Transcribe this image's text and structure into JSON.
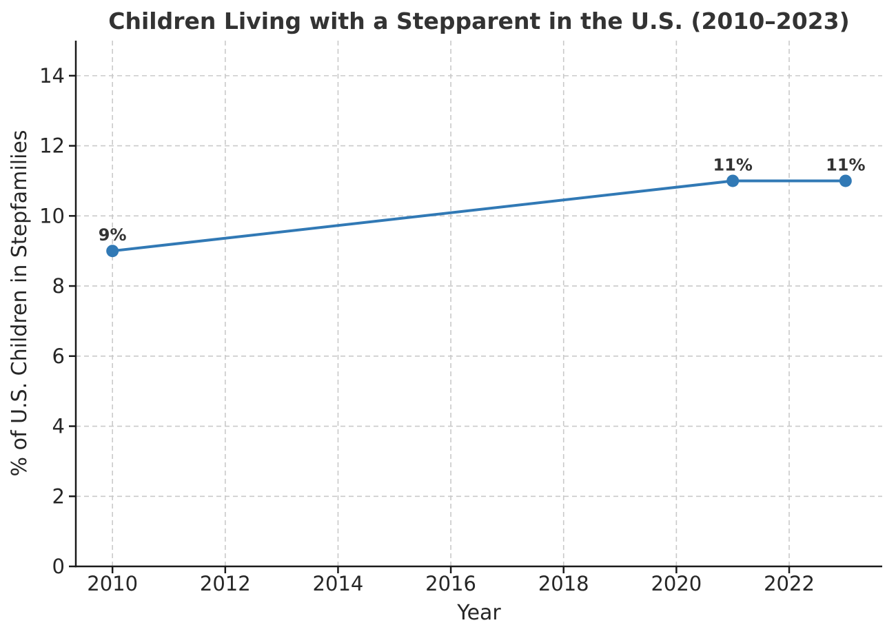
{
  "chart_data": {
    "type": "line",
    "title": "Children Living with a Stepparent in the U.S. (2010–2023)",
    "xlabel": "Year",
    "ylabel": "% of U.S. Children in Stepfamilies",
    "series": [
      {
        "name": "Children in stepfamilies",
        "x": [
          2010,
          2021,
          2023
        ],
        "values": [
          9,
          11,
          11
        ],
        "point_labels": [
          "9%",
          "11%",
          "11%"
        ]
      }
    ],
    "xticks": [
      2010,
      2012,
      2014,
      2016,
      2018,
      2020,
      2022
    ],
    "yticks": [
      0,
      2,
      4,
      6,
      8,
      10,
      12,
      14
    ],
    "xlim": [
      2009.35,
      2023.65
    ],
    "ylim": [
      0,
      15
    ],
    "grid": "dashed both",
    "legend": "none",
    "marker": "circle",
    "colors": {
      "line": "#3179b5",
      "marker": "#3179b5",
      "grid": "#c9c9c9",
      "spine": "#1a1a1a",
      "tick_text": "#262626",
      "title_text": "#333333",
      "background": "#ffffff"
    }
  }
}
